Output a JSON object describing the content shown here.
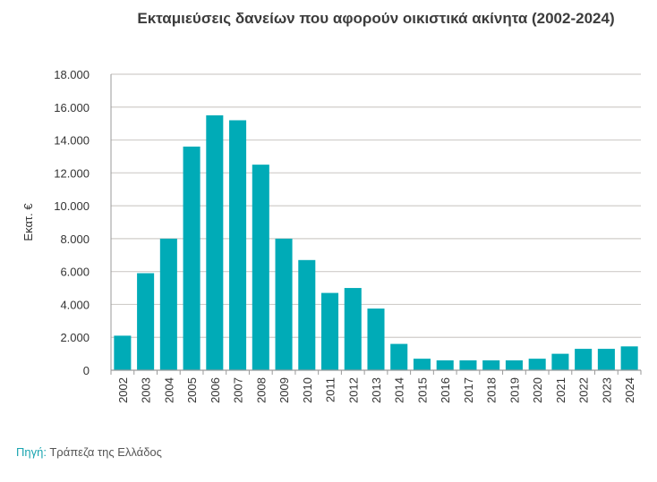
{
  "chart_data": {
    "type": "bar",
    "title": "Εκταμιεύσεις δανείων που αφορούν οικιστικά ακίνητα (2002-2024)",
    "xlabel": "",
    "ylabel": "Εκατ. €",
    "ylim": [
      0,
      18000
    ],
    "yticks": [
      "0",
      "2.000",
      "4.000",
      "6.000",
      "8.000",
      "10.000",
      "12.000",
      "14.000",
      "16.000",
      "18.000"
    ],
    "grid": true,
    "bar_color": "#00abb7",
    "categories": [
      "2002",
      "2003",
      "2004",
      "2005",
      "2006",
      "2007",
      "2008",
      "2009",
      "2010",
      "2011",
      "2012",
      "2013",
      "2014",
      "2015",
      "2016",
      "2017",
      "2018",
      "2019",
      "2020",
      "2021",
      "2022",
      "2023",
      "2024"
    ],
    "values": [
      2100,
      5900,
      8000,
      13600,
      15500,
      15200,
      12500,
      8000,
      6700,
      4700,
      5000,
      3750,
      1600,
      700,
      600,
      600,
      600,
      600,
      700,
      1000,
      1300,
      1300,
      1450
    ]
  },
  "source": {
    "label": "Πηγή:",
    "text": "Τράπεζα της Ελλάδος"
  }
}
